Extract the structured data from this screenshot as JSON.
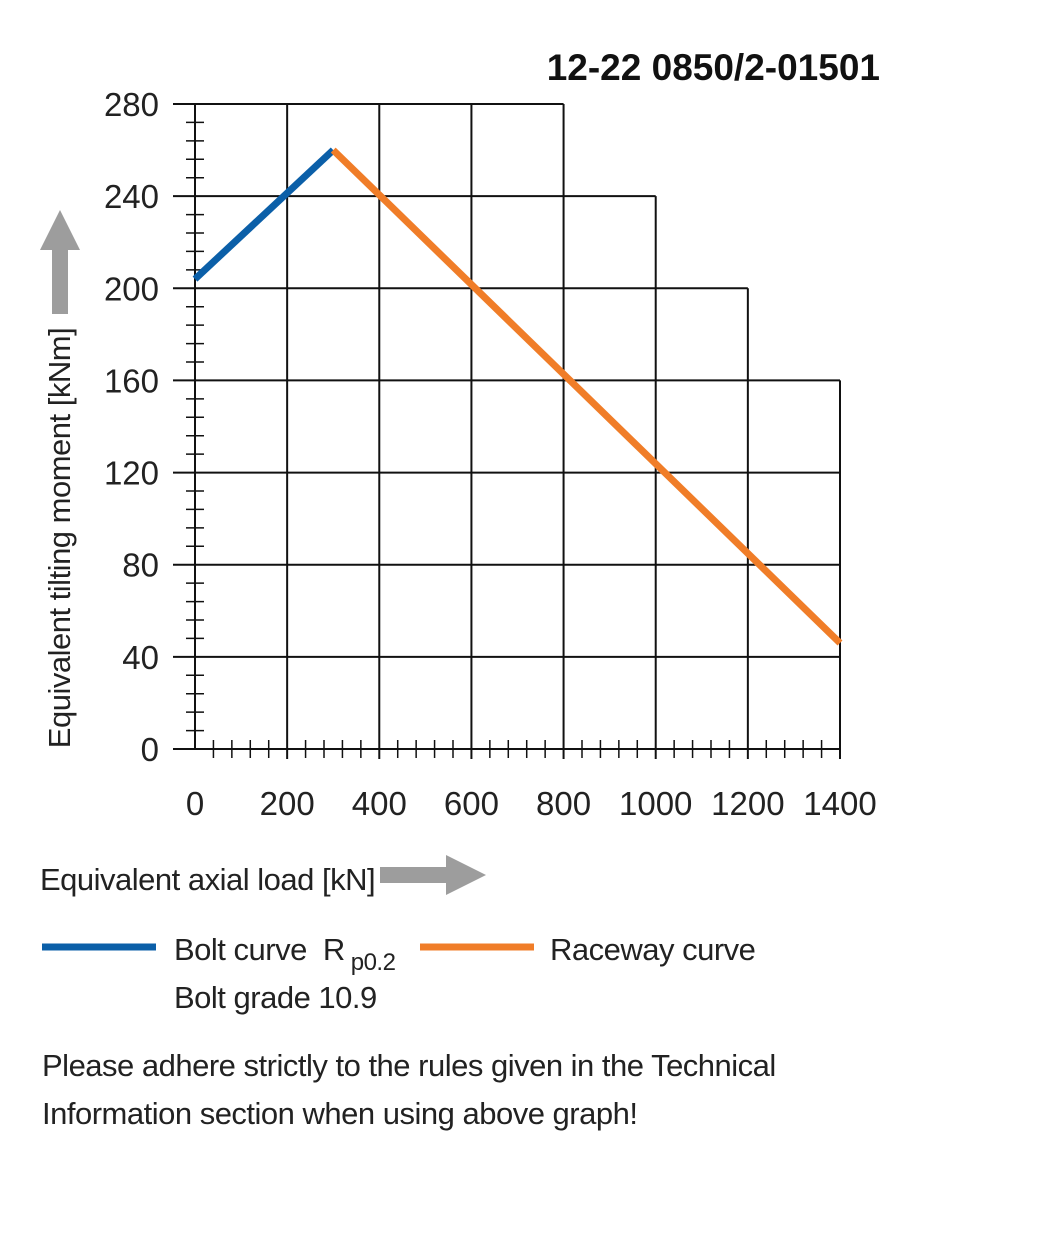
{
  "chart_data": {
    "type": "line",
    "title": "12-22 0850/2-01501",
    "xlabel": "Equivalent axial load [kN]",
    "ylabel": "Equivalent tilting moment [kNm]",
    "xlim": [
      0,
      1400
    ],
    "ylim": [
      0,
      280
    ],
    "xticks": [
      0,
      200,
      400,
      600,
      800,
      1000,
      1200,
      1400
    ],
    "yticks": [
      0,
      40,
      80,
      120,
      160,
      200,
      240,
      280
    ],
    "grid": "on",
    "series": [
      {
        "name": "Bolt curve",
        "subscript": "p0.2",
        "symbol": "R",
        "detail": "Bolt grade 10.9",
        "color": "#0b5fa8",
        "x": [
          0,
          300
        ],
        "y": [
          204,
          260
        ]
      },
      {
        "name": "Raceway curve",
        "color": "#f07d28",
        "x": [
          300,
          1400
        ],
        "y": [
          260,
          46
        ]
      }
    ]
  },
  "note": {
    "line1": "Please adhere strictly to the rules given in the Technical",
    "line2": "Information section when using above graph!"
  },
  "colors": {
    "arrow": "#9d9d9d",
    "grid": "#111111"
  }
}
